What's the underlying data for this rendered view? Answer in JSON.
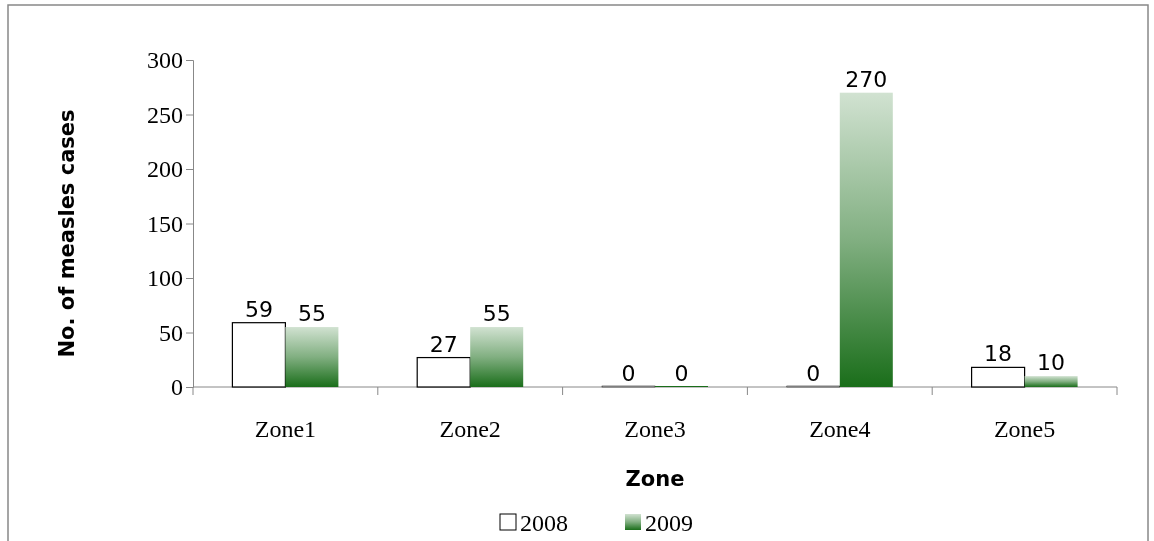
{
  "chart_data": {
    "type": "bar",
    "xlabel": "Zone",
    "ylabel": "No. of measles cases",
    "categories": [
      "Zone1",
      "Zone2",
      "Zone3",
      "Zone4",
      "Zone5"
    ],
    "series": [
      {
        "name": "2008",
        "color": "#ffffff",
        "values": [
          59,
          27,
          0,
          0,
          18
        ]
      },
      {
        "name": "2009",
        "color": "#1a6e1a",
        "values": [
          55,
          55,
          0,
          270,
          10
        ]
      }
    ],
    "ylim": [
      0,
      300
    ],
    "yticks": [
      0,
      50,
      100,
      150,
      200,
      250,
      300
    ],
    "data_labels": true,
    "legend": "bottom"
  }
}
